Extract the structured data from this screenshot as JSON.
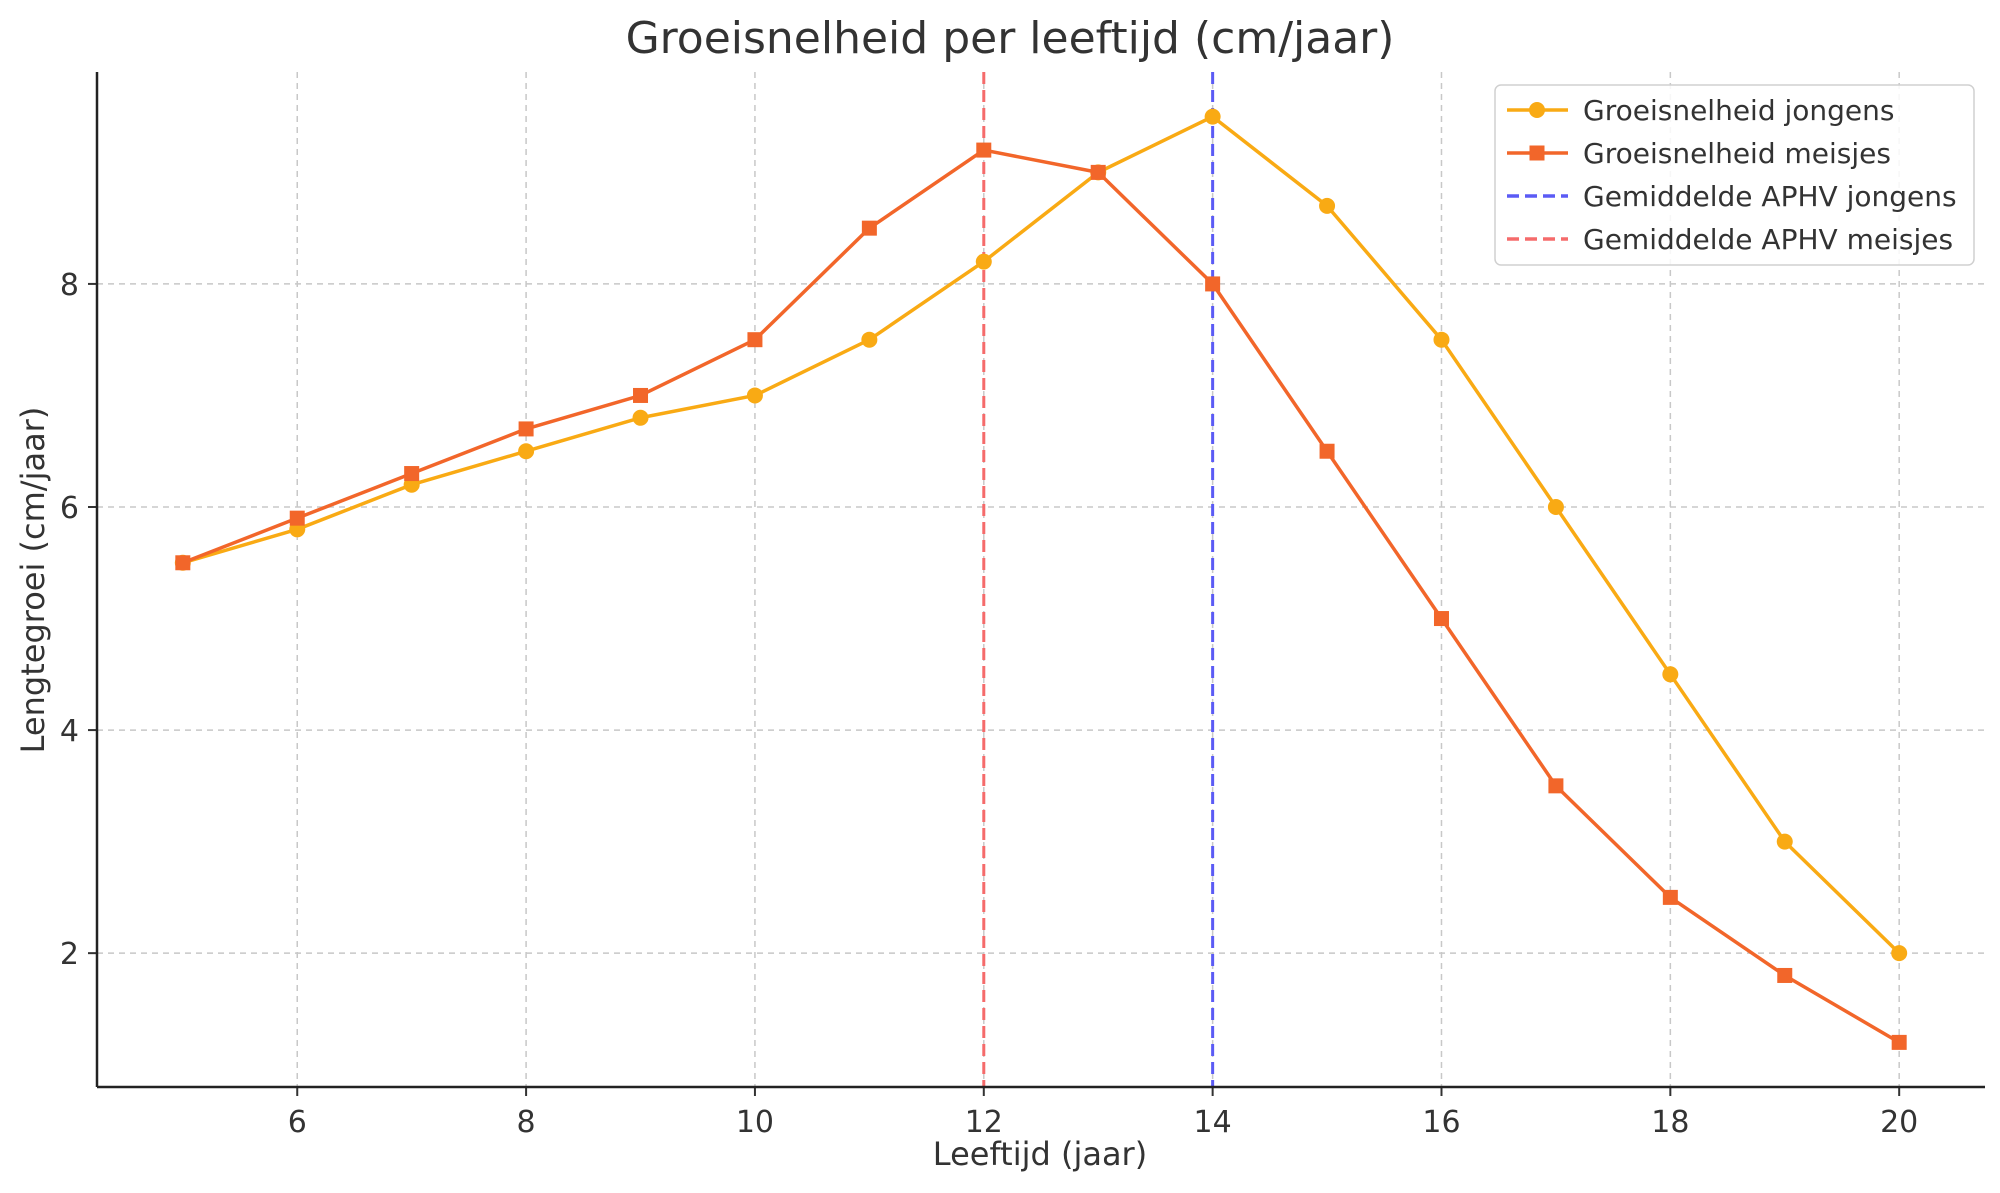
{
  "chart_data": {
    "type": "line",
    "title": "Groeisnelheid per leeftijd (cm/jaar)",
    "xlabel": "Leeftijd (jaar)",
    "ylabel": "Lengtegroei (cm/jaar)",
    "xlim": [
      4.25,
      20.75
    ],
    "ylim": [
      0.8,
      9.9
    ],
    "xticks": [
      6,
      8,
      10,
      12,
      14,
      16,
      18,
      20
    ],
    "yticks": [
      2,
      4,
      6,
      8
    ],
    "x": [
      5,
      6,
      7,
      8,
      9,
      10,
      11,
      12,
      13,
      14,
      15,
      16,
      17,
      18,
      19,
      20
    ],
    "grid": true,
    "legend_position": "top-right",
    "series": [
      {
        "name": "Groeisnelheid jongens",
        "color": "#F9AA14",
        "marker": "circle",
        "values": [
          5.5,
          5.8,
          6.2,
          6.5,
          6.8,
          7.0,
          7.5,
          8.2,
          9.0,
          9.5,
          8.7,
          7.5,
          6.0,
          4.5,
          3.0,
          2.0
        ]
      },
      {
        "name": "Groeisnelheid meisjes",
        "color": "#F2662A",
        "marker": "square",
        "values": [
          5.5,
          5.9,
          6.3,
          6.7,
          7.0,
          7.5,
          8.5,
          9.2,
          9.0,
          8.0,
          6.5,
          5.0,
          3.5,
          2.5,
          1.8,
          1.2
        ]
      }
    ],
    "reference_lines": [
      {
        "name": "Gemiddelde APHV jongens",
        "x": 14,
        "color": "#5B5BF5",
        "style": "dashed"
      },
      {
        "name": "Gemiddelde APHV meisjes",
        "x": 12,
        "color": "#F56B6B",
        "style": "dashed"
      }
    ]
  }
}
